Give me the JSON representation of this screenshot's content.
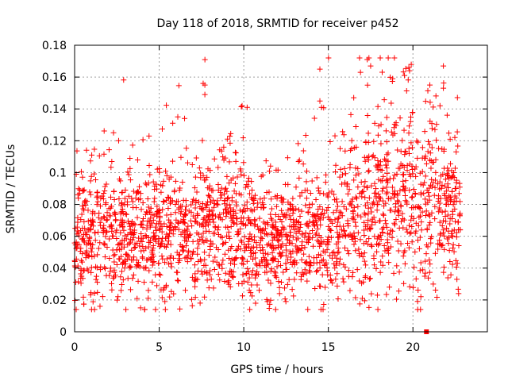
{
  "chart_data": {
    "type": "scatter",
    "title": "Day 118 of 2018, SRMTID for receiver p452",
    "xlabel": "GPS time / hours",
    "ylabel": "SRMTID / TECUs",
    "xlim": [
      0,
      24.4
    ],
    "ylim": [
      0,
      0.18
    ],
    "x_ticks": [
      0,
      5,
      10,
      15,
      20
    ],
    "x_tick_labels": [
      "0",
      "5",
      "10",
      "15",
      "20"
    ],
    "y_ticks": [
      0,
      0.02,
      0.04,
      0.06,
      0.08,
      0.1,
      0.12,
      0.14,
      0.16,
      0.18
    ],
    "y_tick_labels": [
      "0",
      "0.02",
      "0.04",
      "0.06",
      "0.08",
      "0.1",
      "0.12",
      "0.14",
      "0.16",
      "0.18"
    ],
    "grid": true,
    "marker": "plus",
    "color": "#ff0000",
    "series": [
      {
        "name": "SRMTID",
        "count": 2200,
        "x_range": [
          0,
          22.8
        ],
        "profile": {
          "hours": [
            0,
            2,
            3,
            5,
            7,
            9,
            10.5,
            12,
            13.5,
            15,
            16.5,
            18,
            19.5,
            20.5,
            21.5,
            22.8
          ],
          "median": [
            0.055,
            0.065,
            0.06,
            0.065,
            0.06,
            0.07,
            0.055,
            0.055,
            0.06,
            0.06,
            0.072,
            0.075,
            0.08,
            0.085,
            0.08,
            0.07
          ],
          "spread": [
            0.018,
            0.02,
            0.02,
            0.02,
            0.02,
            0.022,
            0.02,
            0.018,
            0.02,
            0.02,
            0.025,
            0.028,
            0.03,
            0.03,
            0.025,
            0.02
          ]
        },
        "highlighted_points": [
          {
            "x": 0.1,
            "y": 0.099
          },
          {
            "x": 0.2,
            "y": 0.086
          },
          {
            "x": 1.5,
            "y": 0.016
          },
          {
            "x": 2.3,
            "y": 0.125
          },
          {
            "x": 3.9,
            "y": 0.015
          },
          {
            "x": 4.4,
            "y": 0.123
          },
          {
            "x": 5.8,
            "y": 0.131
          },
          {
            "x": 6.1,
            "y": 0.135
          },
          {
            "x": 6.5,
            "y": 0.134
          },
          {
            "x": 7.6,
            "y": 0.156
          },
          {
            "x": 7.7,
            "y": 0.155
          },
          {
            "x": 7.7,
            "y": 0.149
          },
          {
            "x": 9.9,
            "y": 0.142
          },
          {
            "x": 10.2,
            "y": 0.141
          },
          {
            "x": 11.4,
            "y": 0.019
          },
          {
            "x": 14.5,
            "y": 0.165
          },
          {
            "x": 14.5,
            "y": 0.145
          },
          {
            "x": 14.6,
            "y": 0.141
          },
          {
            "x": 16.5,
            "y": 0.147
          },
          {
            "x": 16.9,
            "y": 0.163
          },
          {
            "x": 17.3,
            "y": 0.171
          },
          {
            "x": 17.5,
            "y": 0.167
          },
          {
            "x": 17.9,
            "y": 0.023
          },
          {
            "x": 18.8,
            "y": 0.159
          },
          {
            "x": 19.5,
            "y": 0.161
          },
          {
            "x": 19.9,
            "y": 0.168
          },
          {
            "x": 19.8,
            "y": 0.164
          },
          {
            "x": 21.0,
            "y": 0.155
          },
          {
            "x": 21.6,
            "y": 0.142
          },
          {
            "x": 21.8,
            "y": 0.167
          },
          {
            "x": 21.8,
            "y": 0.153
          },
          {
            "x": 21.2,
            "y": 0.03
          },
          {
            "x": 22.2,
            "y": 0.121
          },
          {
            "x": 22.7,
            "y": 0.024
          },
          {
            "x": 22.6,
            "y": 0.033
          },
          {
            "x": 21.3,
            "y": 0.127
          }
        ],
        "zero_marker": {
          "x": 20.8,
          "y": 0.0
        }
      }
    ]
  }
}
